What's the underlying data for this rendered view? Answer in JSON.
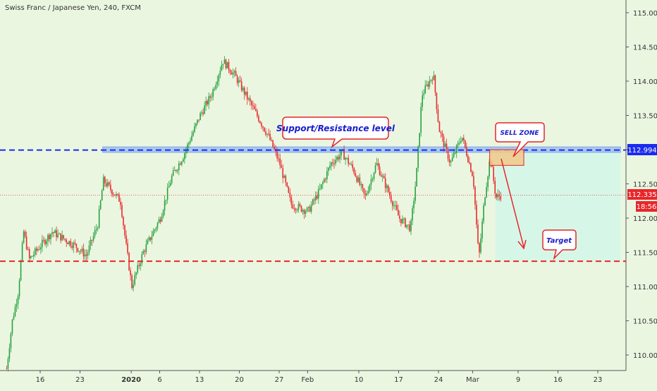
{
  "header": {
    "title": "Swiss Franc / Japanese Yen, 240, FXCM"
  },
  "annotations": {
    "support_resistance": "Support/Resistance level",
    "sell_zone": "SELL ZONE",
    "target": "Target"
  },
  "price_labels": {
    "resistance_value": "112.994",
    "current_value": "112.335",
    "countdown": "18:56"
  },
  "colors": {
    "background": "#ebf6e1",
    "up_candle": "#26a240",
    "down_candle": "#e62c2c",
    "resistance_line": "#1b2bef",
    "target_line": "#e8262a",
    "resistance_band": "#a9c8f0",
    "sell_zone": "#f0c98a",
    "target_zone": "#d6f7e8",
    "callout_border": "#e4262a",
    "callout_text": "#1a1ccc"
  },
  "chart_data": {
    "type": "candlestick",
    "y_axis": {
      "range": [
        109.75,
        115.1
      ],
      "tick_labels": [
        "115.000",
        "114.500",
        "114.000",
        "113.500",
        "113.000",
        "112.500",
        "112.000",
        "111.500",
        "111.000",
        "110.500",
        "110.000"
      ],
      "tick_values": [
        115.0,
        114.5,
        114.0,
        113.5,
        113.0,
        112.5,
        112.0,
        111.5,
        111.0,
        110.5,
        110.0
      ]
    },
    "x_axis": {
      "tick_labels": [
        "16",
        "23",
        "2020",
        "6",
        "13",
        "20",
        "27",
        "Feb",
        "10",
        "17",
        "24",
        "Mar",
        "9",
        "16",
        "23"
      ],
      "tick_dates": [
        "2019-12-16",
        "2019-12-23",
        "2020-01-01",
        "2020-01-06",
        "2020-01-13",
        "2020-01-20",
        "2020-01-27",
        "2020-02-01",
        "2020-02-10",
        "2020-02-17",
        "2020-02-24",
        "2020-03-01",
        "2020-03-09",
        "2020-03-16",
        "2020-03-23"
      ]
    },
    "levels": {
      "resistance": 112.994,
      "current_price": 112.335,
      "target": 111.37
    },
    "zones": {
      "resistance_band": {
        "from_date": "2019-12-27",
        "to_date": "2020-03-27",
        "low": 112.96,
        "high": 113.04
      },
      "sell_zone": {
        "from_date": "2020-03-04",
        "to_date": "2020-03-10",
        "low": 112.77,
        "high": 113.0
      },
      "target_zone": {
        "from_date": "2020-03-05",
        "to_date": "2020-03-27",
        "low": 111.37,
        "high": 112.994
      }
    },
    "price_path": [
      [
        "2019-12-10",
        109.8
      ],
      [
        "2019-12-11",
        110.5
      ],
      [
        "2019-12-12",
        110.9
      ],
      [
        "2019-12-13",
        111.8
      ],
      [
        "2019-12-14",
        111.4
      ],
      [
        "2019-12-16",
        111.6
      ],
      [
        "2019-12-18",
        111.8
      ],
      [
        "2019-12-20",
        111.7
      ],
      [
        "2019-12-22",
        111.6
      ],
      [
        "2019-12-24",
        111.45
      ],
      [
        "2019-12-26",
        111.9
      ],
      [
        "2019-12-27",
        112.55
      ],
      [
        "2019-12-30",
        112.25
      ],
      [
        "2019-12-31",
        111.6
      ],
      [
        "2020-01-01",
        111.0
      ],
      [
        "2020-01-03",
        111.5
      ],
      [
        "2020-01-06",
        112.0
      ],
      [
        "2020-01-08",
        112.6
      ],
      [
        "2020-01-10",
        112.9
      ],
      [
        "2020-01-13",
        113.5
      ],
      [
        "2020-01-15",
        113.8
      ],
      [
        "2020-01-17",
        114.3
      ],
      [
        "2020-01-19",
        114.1
      ],
      [
        "2020-01-21",
        113.8
      ],
      [
        "2020-01-23",
        113.5
      ],
      [
        "2020-01-25",
        113.2
      ],
      [
        "2020-01-27",
        112.8
      ],
      [
        "2020-01-29",
        112.2
      ],
      [
        "2020-02-01",
        112.1
      ],
      [
        "2020-02-03",
        112.4
      ],
      [
        "2020-02-05",
        112.8
      ],
      [
        "2020-02-07",
        112.95
      ],
      [
        "2020-02-09",
        112.7
      ],
      [
        "2020-02-11",
        112.3
      ],
      [
        "2020-02-13",
        112.8
      ],
      [
        "2020-02-15",
        112.4
      ],
      [
        "2020-02-17",
        112.0
      ],
      [
        "2020-02-19",
        111.85
      ],
      [
        "2020-02-20",
        112.6
      ],
      [
        "2020-02-21",
        113.8
      ],
      [
        "2020-02-23",
        114.1
      ],
      [
        "2020-02-24",
        113.3
      ],
      [
        "2020-02-26",
        112.8
      ],
      [
        "2020-02-28",
        113.2
      ],
      [
        "2020-03-01",
        112.6
      ],
      [
        "2020-03-02",
        111.4
      ],
      [
        "2020-03-03",
        112.3
      ],
      [
        "2020-03-04",
        112.9
      ],
      [
        "2020-03-05",
        112.3
      ],
      [
        "2020-03-06",
        112.335
      ]
    ]
  }
}
